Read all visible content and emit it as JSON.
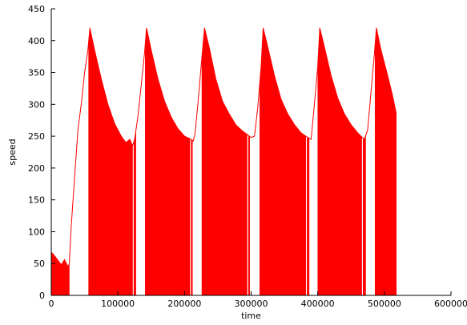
{
  "chart_data": {
    "type": "area",
    "title": "",
    "xlabel": "time",
    "ylabel": "speed",
    "xlim": [
      0,
      600000
    ],
    "ylim": [
      0,
      450
    ],
    "x_ticks": [
      0,
      100000,
      200000,
      300000,
      400000,
      500000,
      600000
    ],
    "y_ticks": [
      0,
      50,
      100,
      150,
      200,
      250,
      300,
      350,
      400,
      450
    ],
    "grid": false,
    "legend": "none",
    "series": [
      {
        "color": "#ff0000",
        "points": [
          [
            0,
            68
          ],
          [
            5000,
            62
          ],
          [
            10000,
            55
          ],
          [
            15000,
            48
          ],
          [
            20000,
            56
          ],
          [
            25000,
            45
          ],
          [
            27000,
            50
          ],
          [
            30000,
            110
          ],
          [
            35000,
            185
          ],
          [
            40000,
            260
          ],
          [
            45000,
            300
          ],
          [
            50000,
            350
          ],
          [
            55000,
            385
          ],
          [
            58000,
            420
          ],
          [
            65000,
            385
          ],
          [
            75000,
            340
          ],
          [
            85000,
            300
          ],
          [
            95000,
            270
          ],
          [
            105000,
            250
          ],
          [
            112000,
            240
          ],
          [
            118000,
            245
          ],
          [
            122000,
            235
          ],
          [
            125000,
            245
          ],
          [
            130000,
            280
          ],
          [
            136000,
            340
          ],
          [
            140000,
            380
          ],
          [
            143000,
            420
          ],
          [
            150000,
            385
          ],
          [
            160000,
            340
          ],
          [
            170000,
            305
          ],
          [
            180000,
            280
          ],
          [
            190000,
            262
          ],
          [
            200000,
            250
          ],
          [
            210000,
            245
          ],
          [
            213000,
            242
          ],
          [
            216000,
            255
          ],
          [
            220000,
            300
          ],
          [
            225000,
            360
          ],
          [
            230000,
            420
          ],
          [
            237000,
            390
          ],
          [
            247000,
            340
          ],
          [
            257000,
            305
          ],
          [
            267000,
            285
          ],
          [
            277000,
            268
          ],
          [
            287000,
            258
          ],
          [
            300000,
            248
          ],
          [
            305000,
            250
          ],
          [
            310000,
            295
          ],
          [
            315000,
            360
          ],
          [
            318000,
            420
          ],
          [
            325000,
            390
          ],
          [
            335000,
            345
          ],
          [
            345000,
            308
          ],
          [
            355000,
            285
          ],
          [
            365000,
            268
          ],
          [
            375000,
            255
          ],
          [
            385000,
            248
          ],
          [
            390000,
            245
          ],
          [
            395000,
            300
          ],
          [
            400000,
            360
          ],
          [
            403000,
            420
          ],
          [
            410000,
            390
          ],
          [
            420000,
            345
          ],
          [
            430000,
            310
          ],
          [
            440000,
            285
          ],
          [
            450000,
            268
          ],
          [
            460000,
            255
          ],
          [
            470000,
            245
          ],
          [
            475000,
            260
          ],
          [
            480000,
            320
          ],
          [
            485000,
            380
          ],
          [
            488000,
            420
          ],
          [
            495000,
            385
          ],
          [
            505000,
            345
          ],
          [
            512000,
            315
          ],
          [
            518000,
            285
          ]
        ],
        "fill_intervals": [
          [
            0,
            27000
          ],
          [
            56000,
            122000
          ],
          [
            124000,
            127000
          ],
          [
            141000,
            208000
          ],
          [
            210000,
            212000
          ],
          [
            226000,
            294000
          ],
          [
            296000,
            298000
          ],
          [
            313000,
            382000
          ],
          [
            384000,
            387000
          ],
          [
            400000,
            466000
          ],
          [
            468000,
            472000
          ],
          [
            486000,
            518000
          ]
        ]
      }
    ]
  }
}
